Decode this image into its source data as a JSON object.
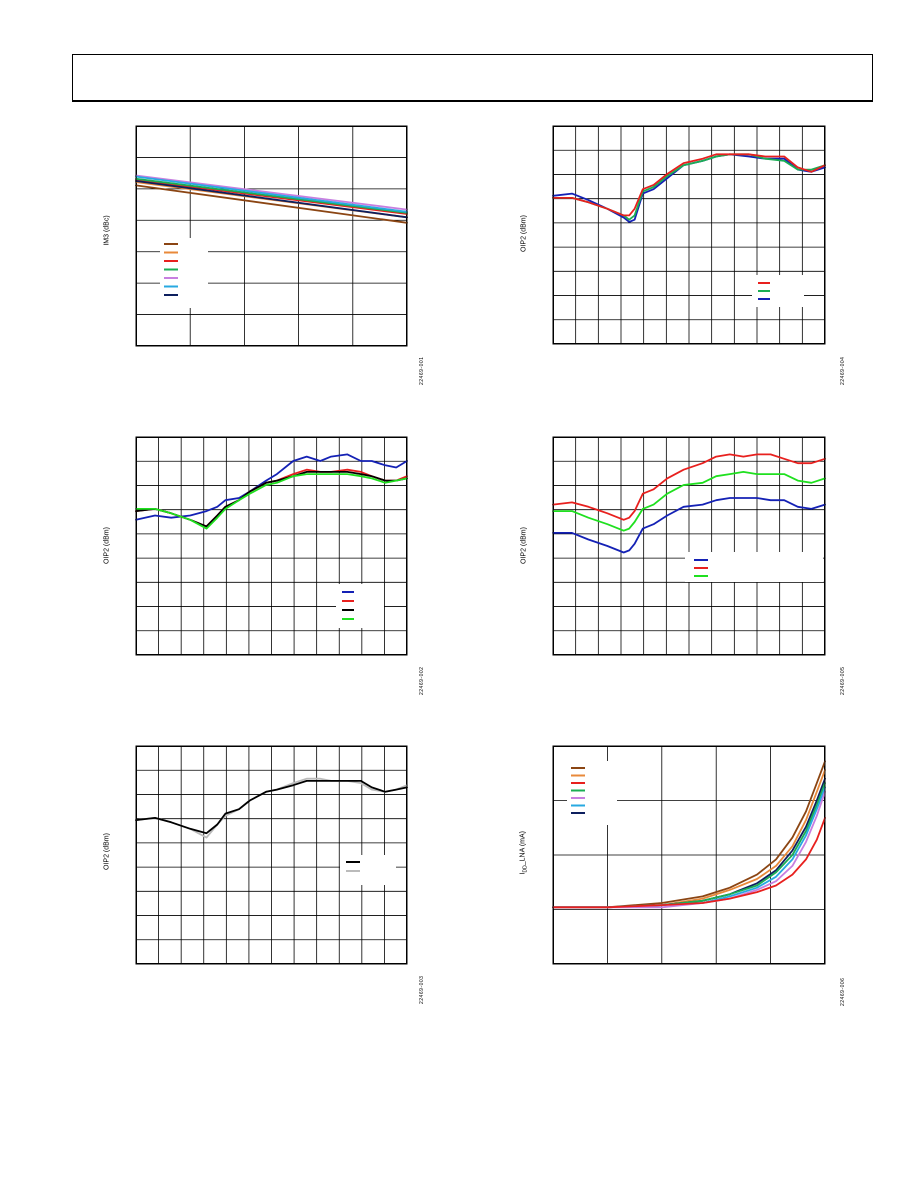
{
  "page": {
    "header": ""
  },
  "chart_data": [
    {
      "id": "c1",
      "type": "line",
      "ylabel": "IM3 (dBc)",
      "fig_id": "22469-001",
      "grid": {
        "cols": 5,
        "rows": 7
      },
      "legend": {
        "placement": "left-middle",
        "colors": [
          "#8B4513",
          "#E8893A",
          "#E8201E",
          "#1AAE54",
          "#C77FE0",
          "#27A9E1",
          "#0D1F5E"
        ]
      },
      "xlim": [
        0,
        1
      ],
      "ylim": [
        0,
        1
      ],
      "series": [
        {
          "color": "#8B4513",
          "x": [
            0,
            1
          ],
          "y": [
            0.73,
            0.56
          ]
        },
        {
          "color": "#E8893A",
          "x": [
            0,
            1
          ],
          "y": [
            0.745,
            0.585
          ]
        },
        {
          "color": "#E8201E",
          "x": [
            0,
            1
          ],
          "y": [
            0.755,
            0.6
          ]
        },
        {
          "color": "#1AAE54",
          "x": [
            0,
            1
          ],
          "y": [
            0.76,
            0.605
          ]
        },
        {
          "color": "#C77FE0",
          "x": [
            0,
            1
          ],
          "y": [
            0.775,
            0.62
          ]
        },
        {
          "color": "#27A9E1",
          "x": [
            0,
            1
          ],
          "y": [
            0.77,
            0.61
          ]
        },
        {
          "color": "#0D1F5E",
          "x": [
            0,
            1
          ],
          "y": [
            0.75,
            0.585
          ]
        }
      ]
    },
    {
      "id": "c2",
      "type": "line",
      "ylabel": "OIP2 (dBm)",
      "fig_id": "22469-004",
      "grid": {
        "cols": 12,
        "rows": 9
      },
      "legend": {
        "placement": "bottom-right",
        "colors": [
          "#E8201E",
          "#1AAE54",
          "#1421B5"
        ]
      },
      "xlim": [
        0,
        1
      ],
      "ylim": [
        0,
        1
      ],
      "series": [
        {
          "color": "#1421B5",
          "x": [
            0,
            0.07,
            0.13,
            0.2,
            0.26,
            0.28,
            0.3,
            0.33,
            0.37,
            0.42,
            0.48,
            0.55,
            0.6,
            0.65,
            0.72,
            0.78,
            0.85,
            0.9,
            0.95,
            1.0
          ],
          "y": [
            0.68,
            0.69,
            0.66,
            0.62,
            0.58,
            0.56,
            0.57,
            0.69,
            0.71,
            0.76,
            0.82,
            0.84,
            0.86,
            0.87,
            0.86,
            0.85,
            0.85,
            0.8,
            0.79,
            0.81
          ]
        },
        {
          "color": "#1AAE54",
          "x": [
            0,
            0.07,
            0.13,
            0.2,
            0.26,
            0.28,
            0.3,
            0.33,
            0.37,
            0.42,
            0.48,
            0.55,
            0.6,
            0.65,
            0.72,
            0.78,
            0.85,
            0.9,
            0.95,
            1.0
          ],
          "y": [
            0.67,
            0.67,
            0.65,
            0.62,
            0.59,
            0.57,
            0.59,
            0.7,
            0.72,
            0.77,
            0.82,
            0.84,
            0.86,
            0.87,
            0.87,
            0.85,
            0.84,
            0.8,
            0.8,
            0.82
          ]
        },
        {
          "color": "#E8201E",
          "x": [
            0,
            0.07,
            0.13,
            0.2,
            0.26,
            0.28,
            0.3,
            0.33,
            0.37,
            0.42,
            0.48,
            0.55,
            0.6,
            0.65,
            0.72,
            0.78,
            0.85,
            0.9,
            0.95,
            1.0
          ],
          "y": [
            0.67,
            0.67,
            0.65,
            0.62,
            0.59,
            0.59,
            0.62,
            0.71,
            0.73,
            0.78,
            0.83,
            0.85,
            0.87,
            0.87,
            0.87,
            0.86,
            0.86,
            0.81,
            0.79,
            0.82
          ]
        }
      ]
    },
    {
      "id": "c3",
      "type": "line",
      "ylabel": "OIP2 (dBm)",
      "fig_id": "22469-002",
      "grid": {
        "cols": 12,
        "rows": 9
      },
      "legend": {
        "placement": "bottom-right",
        "colors": [
          "#1421B5",
          "#E8201E",
          "#000000",
          "#1FE01F"
        ]
      },
      "xlim": [
        0,
        1
      ],
      "ylim": [
        0,
        1
      ],
      "series": [
        {
          "color": "#1421B5",
          "x": [
            0,
            0.07,
            0.13,
            0.2,
            0.26,
            0.3,
            0.33,
            0.38,
            0.42,
            0.48,
            0.52,
            0.58,
            0.63,
            0.68,
            0.72,
            0.78,
            0.83,
            0.87,
            0.92,
            0.96,
            1.0
          ],
          "y": [
            0.62,
            0.64,
            0.63,
            0.64,
            0.66,
            0.68,
            0.71,
            0.72,
            0.75,
            0.8,
            0.83,
            0.89,
            0.91,
            0.89,
            0.91,
            0.92,
            0.89,
            0.89,
            0.87,
            0.86,
            0.89
          ]
        },
        {
          "color": "#E8201E",
          "x": [
            0,
            0.07,
            0.13,
            0.2,
            0.26,
            0.3,
            0.33,
            0.38,
            0.42,
            0.48,
            0.52,
            0.58,
            0.63,
            0.68,
            0.72,
            0.78,
            0.83,
            0.87,
            0.92,
            0.96,
            1.0
          ],
          "y": [
            0.66,
            0.67,
            0.65,
            0.62,
            0.59,
            0.64,
            0.68,
            0.71,
            0.75,
            0.79,
            0.8,
            0.83,
            0.85,
            0.84,
            0.84,
            0.85,
            0.84,
            0.82,
            0.8,
            0.8,
            0.82
          ]
        },
        {
          "color": "#000000",
          "x": [
            0,
            0.07,
            0.13,
            0.2,
            0.26,
            0.3,
            0.33,
            0.38,
            0.42,
            0.48,
            0.52,
            0.58,
            0.63,
            0.68,
            0.72,
            0.78,
            0.83,
            0.87,
            0.92,
            0.96,
            1.0
          ],
          "y": [
            0.66,
            0.67,
            0.65,
            0.62,
            0.59,
            0.64,
            0.68,
            0.71,
            0.75,
            0.79,
            0.8,
            0.82,
            0.84,
            0.84,
            0.84,
            0.84,
            0.83,
            0.82,
            0.8,
            0.8,
            0.81
          ]
        },
        {
          "color": "#1FE01F",
          "x": [
            0,
            0.07,
            0.13,
            0.2,
            0.26,
            0.3,
            0.33,
            0.38,
            0.42,
            0.48,
            0.52,
            0.58,
            0.63,
            0.68,
            0.72,
            0.78,
            0.83,
            0.87,
            0.92,
            0.96,
            1.0
          ],
          "y": [
            0.67,
            0.67,
            0.65,
            0.62,
            0.58,
            0.63,
            0.67,
            0.71,
            0.74,
            0.78,
            0.79,
            0.82,
            0.83,
            0.83,
            0.83,
            0.83,
            0.82,
            0.81,
            0.79,
            0.8,
            0.81
          ]
        }
      ]
    },
    {
      "id": "c4",
      "type": "line",
      "ylabel": "OIP2 (dBm)",
      "fig_id": "22469-005",
      "grid": {
        "cols": 12,
        "rows": 9
      },
      "legend": {
        "placement": "right-middle",
        "colors": [
          "#1421B5",
          "#E8201E",
          "#1FE01F"
        ]
      },
      "xlim": [
        0,
        1
      ],
      "ylim": [
        0,
        1
      ],
      "series": [
        {
          "color": "#E8201E",
          "x": [
            0,
            0.07,
            0.13,
            0.2,
            0.26,
            0.28,
            0.3,
            0.33,
            0.37,
            0.42,
            0.48,
            0.55,
            0.6,
            0.65,
            0.7,
            0.75,
            0.8,
            0.85,
            0.9,
            0.95,
            1.0
          ],
          "y": [
            0.69,
            0.7,
            0.68,
            0.65,
            0.62,
            0.63,
            0.66,
            0.74,
            0.76,
            0.81,
            0.85,
            0.88,
            0.91,
            0.92,
            0.91,
            0.92,
            0.92,
            0.9,
            0.88,
            0.88,
            0.9
          ]
        },
        {
          "color": "#1FE01F",
          "x": [
            0,
            0.07,
            0.13,
            0.2,
            0.26,
            0.28,
            0.3,
            0.33,
            0.37,
            0.42,
            0.48,
            0.55,
            0.6,
            0.65,
            0.7,
            0.75,
            0.8,
            0.85,
            0.9,
            0.95,
            1.0
          ],
          "y": [
            0.66,
            0.66,
            0.63,
            0.6,
            0.57,
            0.58,
            0.61,
            0.67,
            0.69,
            0.74,
            0.78,
            0.79,
            0.82,
            0.83,
            0.84,
            0.83,
            0.83,
            0.83,
            0.8,
            0.79,
            0.81
          ]
        },
        {
          "color": "#1421B5",
          "x": [
            0,
            0.07,
            0.13,
            0.2,
            0.26,
            0.28,
            0.3,
            0.33,
            0.37,
            0.42,
            0.48,
            0.55,
            0.6,
            0.65,
            0.7,
            0.75,
            0.8,
            0.85,
            0.9,
            0.95,
            1.0
          ],
          "y": [
            0.56,
            0.56,
            0.53,
            0.5,
            0.47,
            0.48,
            0.51,
            0.58,
            0.6,
            0.64,
            0.68,
            0.69,
            0.71,
            0.72,
            0.72,
            0.72,
            0.71,
            0.71,
            0.68,
            0.67,
            0.69
          ]
        }
      ]
    },
    {
      "id": "c5",
      "type": "line",
      "ylabel": "OIP2 (dBm)",
      "fig_id": "22469-003",
      "grid": {
        "cols": 12,
        "rows": 9
      },
      "legend": {
        "placement": "bottom-right",
        "colors": [
          "#000000",
          "#BBBBBB"
        ]
      },
      "xlim": [
        0,
        1
      ],
      "ylim": [
        0,
        1
      ],
      "series": [
        {
          "color": "#BBBBBB",
          "x": [
            0,
            0.07,
            0.13,
            0.2,
            0.26,
            0.3,
            0.33,
            0.38,
            0.42,
            0.48,
            0.52,
            0.58,
            0.63,
            0.68,
            0.72,
            0.78,
            0.83,
            0.87,
            0.92,
            0.96,
            1.0
          ],
          "y": [
            0.66,
            0.67,
            0.65,
            0.62,
            0.58,
            0.64,
            0.68,
            0.71,
            0.75,
            0.79,
            0.8,
            0.83,
            0.85,
            0.85,
            0.84,
            0.84,
            0.83,
            0.8,
            0.79,
            0.8,
            0.82
          ]
        },
        {
          "color": "#000000",
          "x": [
            0,
            0.07,
            0.13,
            0.2,
            0.26,
            0.3,
            0.33,
            0.38,
            0.42,
            0.48,
            0.52,
            0.58,
            0.63,
            0.68,
            0.72,
            0.78,
            0.83,
            0.87,
            0.92,
            0.96,
            1.0
          ],
          "y": [
            0.66,
            0.67,
            0.65,
            0.62,
            0.6,
            0.64,
            0.69,
            0.71,
            0.75,
            0.79,
            0.8,
            0.82,
            0.84,
            0.84,
            0.84,
            0.84,
            0.84,
            0.81,
            0.79,
            0.8,
            0.81
          ]
        }
      ]
    },
    {
      "id": "c6",
      "type": "line",
      "ylabel_main": "I",
      "ylabel_sub": "DD",
      "ylabel_rest": "_LNA (mA)",
      "fig_id": "22469-006",
      "grid": {
        "cols": 5,
        "rows": 4
      },
      "legend": {
        "placement": "top-left",
        "colors": [
          "#8B4513",
          "#E8893A",
          "#E8201E",
          "#1AAE54",
          "#C77FE0",
          "#27A9E1",
          "#0D1F5E"
        ]
      },
      "xlim": [
        0,
        1
      ],
      "ylim": [
        0,
        1
      ],
      "series": [
        {
          "color": "#8B4513",
          "x": [
            0,
            0.2,
            0.4,
            0.55,
            0.65,
            0.75,
            0.82,
            0.88,
            0.93,
            0.97,
            1.0
          ],
          "y": [
            0.26,
            0.26,
            0.28,
            0.31,
            0.35,
            0.41,
            0.48,
            0.58,
            0.7,
            0.83,
            0.93
          ]
        },
        {
          "color": "#E8893A",
          "x": [
            0,
            0.2,
            0.4,
            0.55,
            0.65,
            0.75,
            0.82,
            0.88,
            0.93,
            0.97,
            1.0
          ],
          "y": [
            0.26,
            0.26,
            0.27,
            0.3,
            0.34,
            0.39,
            0.45,
            0.54,
            0.66,
            0.79,
            0.89
          ]
        },
        {
          "color": "#0D1F5E",
          "x": [
            0,
            0.2,
            0.4,
            0.55,
            0.65,
            0.75,
            0.82,
            0.88,
            0.93,
            0.97,
            1.0
          ],
          "y": [
            0.26,
            0.26,
            0.27,
            0.29,
            0.32,
            0.37,
            0.43,
            0.52,
            0.63,
            0.75,
            0.85
          ]
        },
        {
          "color": "#1AAE54",
          "x": [
            0,
            0.2,
            0.4,
            0.55,
            0.65,
            0.75,
            0.82,
            0.88,
            0.93,
            0.97,
            1.0
          ],
          "y": [
            0.26,
            0.26,
            0.27,
            0.29,
            0.32,
            0.36,
            0.42,
            0.5,
            0.61,
            0.73,
            0.83
          ]
        },
        {
          "color": "#27A9E1",
          "x": [
            0,
            0.2,
            0.4,
            0.55,
            0.65,
            0.75,
            0.82,
            0.88,
            0.93,
            0.97,
            1.0
          ],
          "y": [
            0.26,
            0.26,
            0.27,
            0.28,
            0.31,
            0.35,
            0.4,
            0.48,
            0.59,
            0.71,
            0.81
          ]
        },
        {
          "color": "#C77FE0",
          "x": [
            0,
            0.2,
            0.4,
            0.55,
            0.65,
            0.75,
            0.82,
            0.88,
            0.93,
            0.97,
            1.0
          ],
          "y": [
            0.26,
            0.26,
            0.26,
            0.28,
            0.3,
            0.34,
            0.38,
            0.45,
            0.56,
            0.68,
            0.79
          ]
        },
        {
          "color": "#E8201E",
          "x": [
            0,
            0.2,
            0.4,
            0.55,
            0.65,
            0.75,
            0.82,
            0.88,
            0.93,
            0.97,
            1.0
          ],
          "y": [
            0.26,
            0.26,
            0.27,
            0.28,
            0.3,
            0.33,
            0.36,
            0.41,
            0.48,
            0.57,
            0.67
          ]
        }
      ]
    }
  ]
}
